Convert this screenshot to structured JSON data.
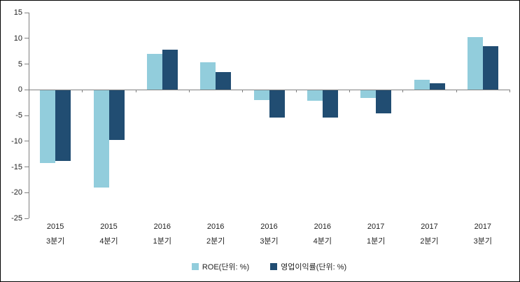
{
  "chart_data": {
    "type": "bar",
    "title": "",
    "xlabel": "",
    "ylabel": "",
    "categories": [
      {
        "year": "2015",
        "quarter": "3분기"
      },
      {
        "year": "2015",
        "quarter": "4분기"
      },
      {
        "year": "2016",
        "quarter": "1분기"
      },
      {
        "year": "2016",
        "quarter": "2분기"
      },
      {
        "year": "2016",
        "quarter": "3분기"
      },
      {
        "year": "2016",
        "quarter": "4분기"
      },
      {
        "year": "2017",
        "quarter": "1분기"
      },
      {
        "year": "2017",
        "quarter": "2분기"
      },
      {
        "year": "2017",
        "quarter": "3분기"
      }
    ],
    "series": [
      {
        "name": "ROE(단위: %)",
        "color": "#92CDDC",
        "values": [
          -14.2,
          -19.0,
          7.0,
          5.4,
          -2.0,
          -2.2,
          -1.6,
          1.9,
          10.3
        ]
      },
      {
        "name": "영업이익률(단위: %)",
        "color": "#214D72",
        "values": [
          -13.8,
          -9.8,
          7.8,
          3.5,
          -5.4,
          -5.4,
          -4.6,
          1.3,
          8.5
        ]
      }
    ],
    "ylim": [
      -25,
      15
    ],
    "y_ticks": [
      15,
      10,
      5,
      0,
      -5,
      -10,
      -15,
      -20,
      -25
    ],
    "grid": false,
    "legend_position": "bottom",
    "axis_color": "#808080",
    "text_color": "#1f1f1f",
    "background_color": "#ffffff"
  }
}
